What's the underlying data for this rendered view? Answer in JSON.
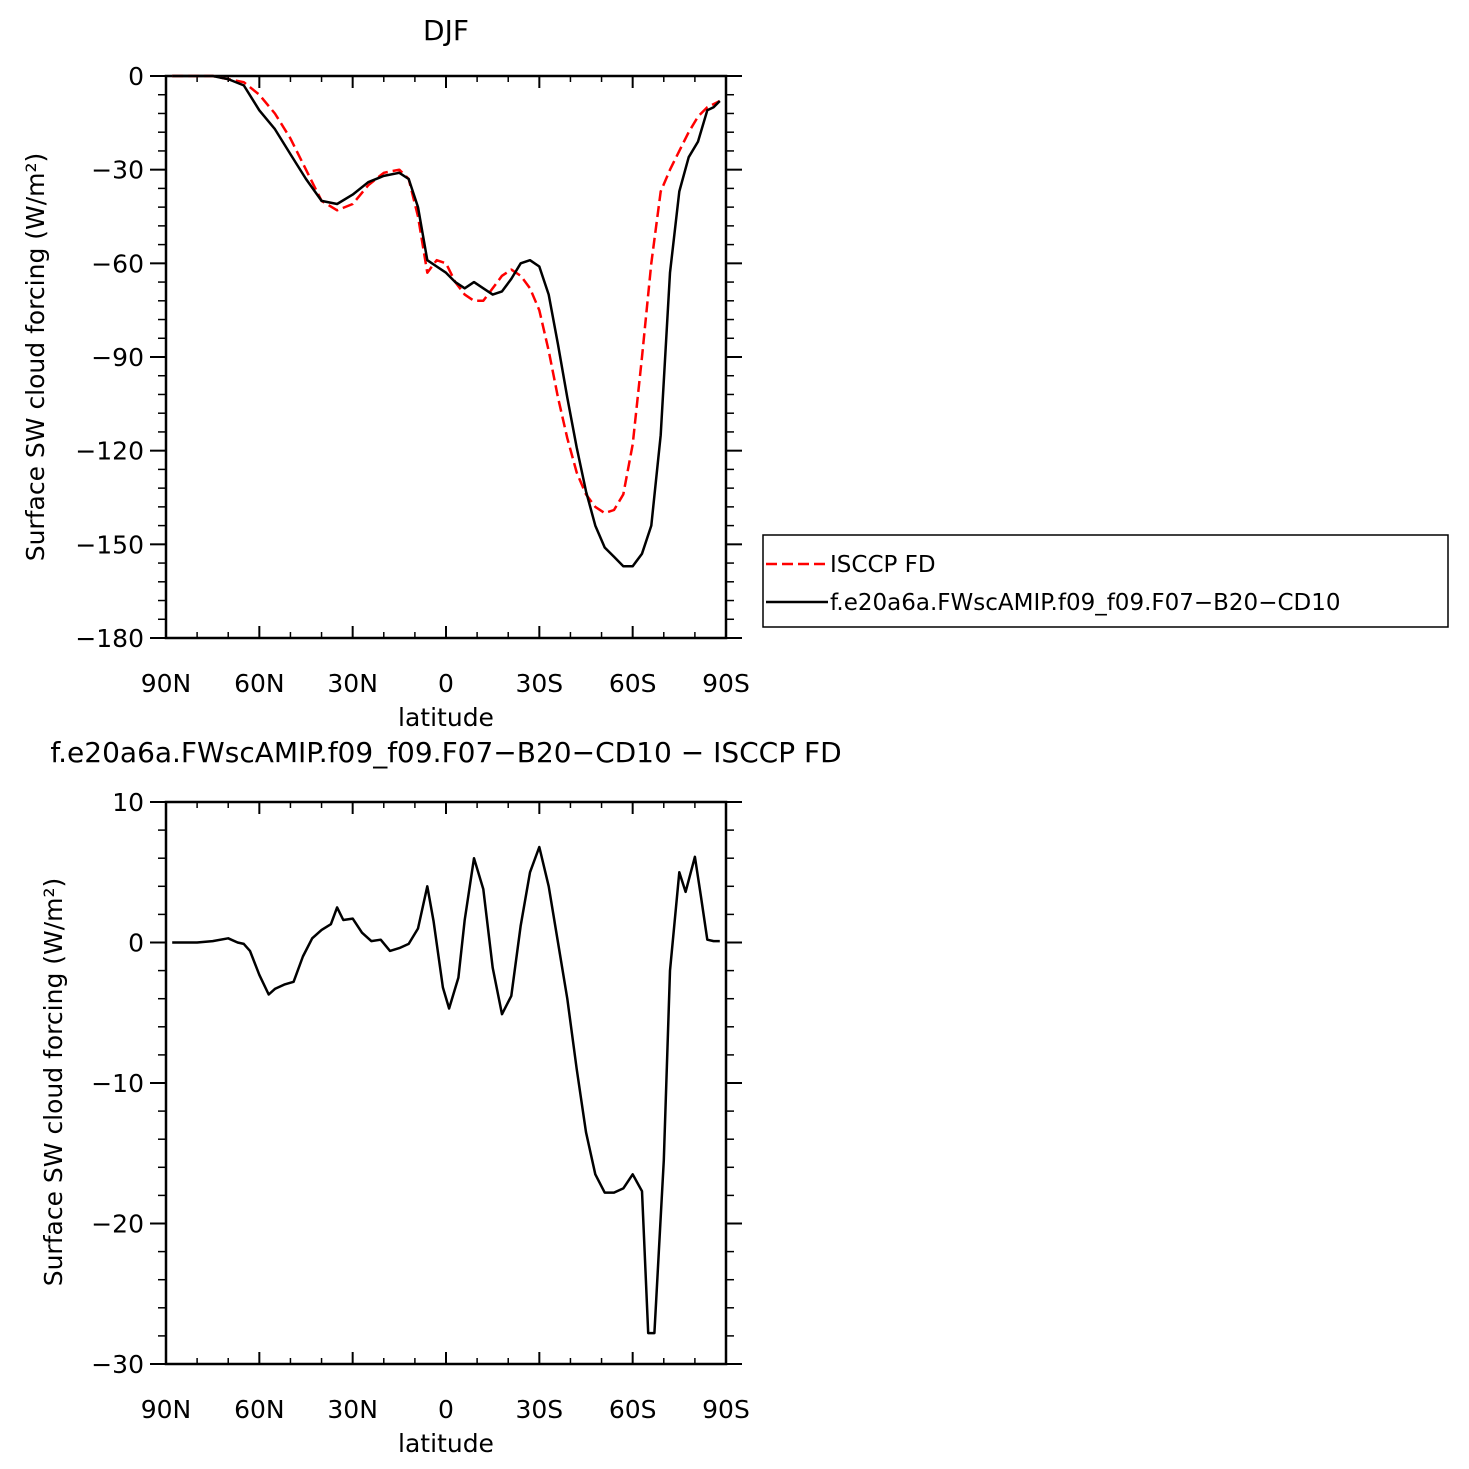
{
  "chart_data": [
    {
      "type": "line",
      "title": "DJF",
      "xlabel": "latitude",
      "ylabel": "Surface SW cloud forcing (W/m²)",
      "x_ticks": [
        "90N",
        "60N",
        "30N",
        "0",
        "30S",
        "60S",
        "90S"
      ],
      "y_ticks": [
        "0",
        "−30",
        "−60",
        "−90",
        "−120",
        "−150",
        "−180"
      ],
      "xlim": [
        -90,
        90
      ],
      "ylim": [
        -180,
        0
      ],
      "x_direction": "north-to-south",
      "grid": false,
      "legend": {
        "position": "right",
        "entries": [
          "ISCCP FD",
          "f.e20a6a.FWscAMIP.f09_f09.F07−B20−CD10"
        ]
      },
      "series": [
        {
          "name": "ISCCP FD",
          "color": "#ff0000",
          "dash": "dashed",
          "x": [
            -88,
            -85,
            -80,
            -75,
            -70,
            -65,
            -60,
            -55,
            -50,
            -45,
            -40,
            -35,
            -30,
            -25,
            -20,
            -15,
            -12,
            -9,
            -6,
            -3,
            0,
            3,
            6,
            9,
            12,
            15,
            18,
            21,
            24,
            27,
            30,
            33,
            36,
            39,
            42,
            45,
            48,
            51,
            54,
            57,
            60,
            63,
            66,
            69,
            72,
            75,
            78,
            81,
            84,
            86,
            88
          ],
          "y": [
            0,
            0,
            0,
            0,
            -1,
            -2,
            -6,
            -12,
            -20,
            -30,
            -40,
            -43,
            -41,
            -35,
            -31,
            -30,
            -33,
            -45,
            -63,
            -59,
            -60,
            -66,
            -70,
            -72,
            -72,
            -68,
            -64,
            -62,
            -64,
            -68,
            -75,
            -88,
            -103,
            -116,
            -127,
            -134,
            -138,
            -140,
            -139,
            -134,
            -118,
            -90,
            -60,
            -37,
            -30,
            -24,
            -18,
            -13,
            -10,
            -9,
            -8
          ]
        },
        {
          "name": "f.e20a6a.FWscAMIP.f09_f09.F07−B20−CD10",
          "color": "#000000",
          "dash": "solid",
          "x": [
            -88,
            -85,
            -80,
            -75,
            -70,
            -65,
            -60,
            -55,
            -50,
            -45,
            -40,
            -35,
            -30,
            -25,
            -20,
            -15,
            -12,
            -9,
            -6,
            -3,
            0,
            3,
            6,
            9,
            12,
            15,
            18,
            21,
            24,
            27,
            30,
            33,
            36,
            39,
            42,
            45,
            48,
            51,
            54,
            57,
            60,
            63,
            66,
            69,
            72,
            75,
            78,
            81,
            84,
            86,
            88
          ],
          "y": [
            0,
            0,
            0,
            0,
            -1,
            -3,
            -11,
            -17,
            -25,
            -33,
            -40,
            -41,
            -38,
            -34,
            -32,
            -31,
            -33,
            -42,
            -59,
            -61,
            -63,
            -66,
            -68,
            -66,
            -68,
            -70,
            -69,
            -65,
            -60,
            -59,
            -61,
            -70,
            -86,
            -103,
            -119,
            -133,
            -144,
            -151,
            -154,
            -157,
            -157,
            -153,
            -144,
            -115,
            -63,
            -37,
            -26,
            -21,
            -11,
            -10,
            -8
          ]
        }
      ]
    },
    {
      "type": "line",
      "title": "f.e20a6a.FWscAMIP.f09_f09.F07−B20−CD10 − ISCCP FD",
      "xlabel": "latitude",
      "ylabel": "Surface SW cloud forcing (W/m²)",
      "x_ticks": [
        "90N",
        "60N",
        "30N",
        "0",
        "30S",
        "60S",
        "90S"
      ],
      "y_ticks": [
        "10",
        "0",
        "−10",
        "−20",
        "−30"
      ],
      "xlim": [
        -90,
        90
      ],
      "ylim": [
        -30,
        10
      ],
      "x_direction": "north-to-south",
      "grid": false,
      "series": [
        {
          "color": "#000000",
          "dash": "solid",
          "x": [
            -88,
            -85,
            -80,
            -75,
            -70,
            -67,
            -65,
            -63,
            -60,
            -57,
            -55,
            -52,
            -49,
            -46,
            -43,
            -40,
            -37,
            -35,
            -33,
            -30,
            -27,
            -24,
            -21,
            -18,
            -15,
            -12,
            -9,
            -6,
            -4,
            -1,
            1,
            4,
            6,
            9,
            12,
            15,
            18,
            21,
            24,
            27,
            30,
            33,
            36,
            39,
            42,
            45,
            48,
            51,
            54,
            57,
            60,
            63,
            65,
            67,
            70,
            72,
            75,
            77,
            80,
            82,
            84,
            86,
            88
          ],
          "y": [
            0,
            0,
            0,
            0.1,
            0.3,
            0,
            -0.1,
            -0.6,
            -2.3,
            -3.7,
            -3.3,
            -3.0,
            -2.8,
            -1,
            0.3,
            0.9,
            1.3,
            2.5,
            1.6,
            1.7,
            0.7,
            0.1,
            0.2,
            -0.6,
            -0.4,
            -0.1,
            1,
            4,
            1.5,
            -3.2,
            -4.7,
            -2.5,
            1.6,
            6,
            3.8,
            -1.8,
            -5.1,
            -3.8,
            1.2,
            5,
            6.8,
            4,
            0,
            -4,
            -9,
            -13.5,
            -16.5,
            -17.8,
            -17.8,
            -17.5,
            -16.5,
            -17.7,
            -27.8,
            -27.8,
            -15.5,
            -2,
            5,
            3.6,
            6.1,
            3.2,
            0.2,
            0.1,
            0.1
          ]
        }
      ]
    }
  ]
}
